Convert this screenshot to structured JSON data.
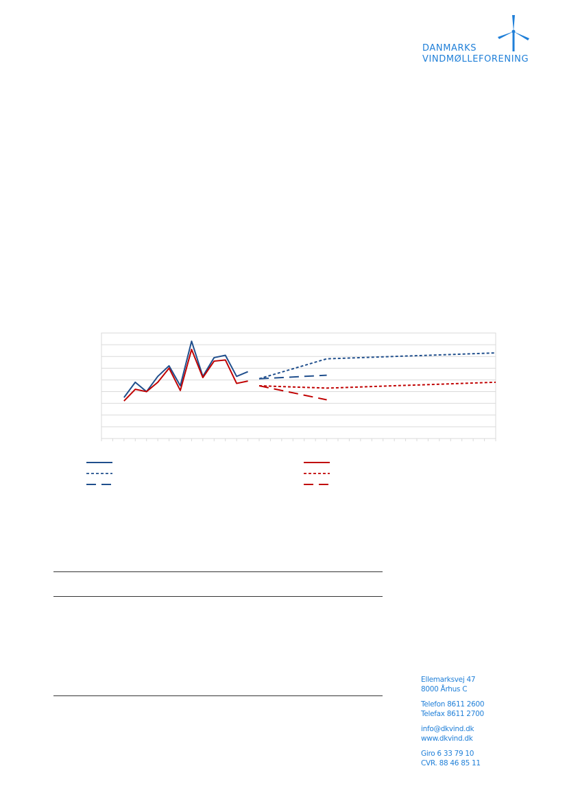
{
  "logo": {
    "line1": "DANMARKS",
    "line2": "VINDMØLLEFORENING"
  },
  "contact": {
    "address": [
      "Ellemarksvej 47",
      "8000  Århus C"
    ],
    "phones": [
      "Telefon 8611 2600",
      "Telefax 8611 2700"
    ],
    "web": [
      "info@dkvind.dk",
      "www.dkvind.dk"
    ],
    "ids": [
      "Giro 6 33 79 10",
      "CVR. 88 46 85 11"
    ]
  },
  "colors": {
    "blue": "#1f4e8c",
    "red": "#c00000",
    "brand": "#1f7fd8",
    "grid": "#d9d9d9"
  },
  "chart_data": {
    "type": "line",
    "ylim": [
      0,
      9
    ],
    "xlim": [
      0,
      35
    ],
    "grid": true,
    "legend": "bottom",
    "series": [
      {
        "style": "solid",
        "color": "blue",
        "x": [
          2,
          3,
          4,
          5,
          6,
          7,
          8,
          9,
          10,
          11,
          12,
          13
        ],
        "y": [
          3.5,
          4.8,
          4.0,
          5.3,
          6.2,
          4.5,
          8.3,
          5.3,
          6.9,
          7.1,
          5.3,
          5.7
        ]
      },
      {
        "style": "solid",
        "color": "red",
        "x": [
          2,
          3,
          4,
          5,
          6,
          7,
          8,
          9,
          10,
          11,
          12,
          13
        ],
        "y": [
          3.2,
          4.2,
          4.0,
          4.8,
          6.0,
          4.1,
          7.6,
          5.2,
          6.6,
          6.7,
          4.7,
          4.9
        ]
      },
      {
        "style": "dotted",
        "color": "blue",
        "x": [
          14,
          20,
          35
        ],
        "y": [
          5.1,
          6.8,
          7.3
        ]
      },
      {
        "style": "dashed",
        "color": "blue",
        "x": [
          14,
          20
        ],
        "y": [
          5.1,
          5.4
        ]
      },
      {
        "style": "dotted",
        "color": "red",
        "x": [
          14,
          20,
          35
        ],
        "y": [
          4.5,
          4.3,
          4.8
        ]
      },
      {
        "style": "dashed",
        "color": "red",
        "x": [
          14,
          20
        ],
        "y": [
          4.5,
          3.3
        ]
      }
    ]
  }
}
